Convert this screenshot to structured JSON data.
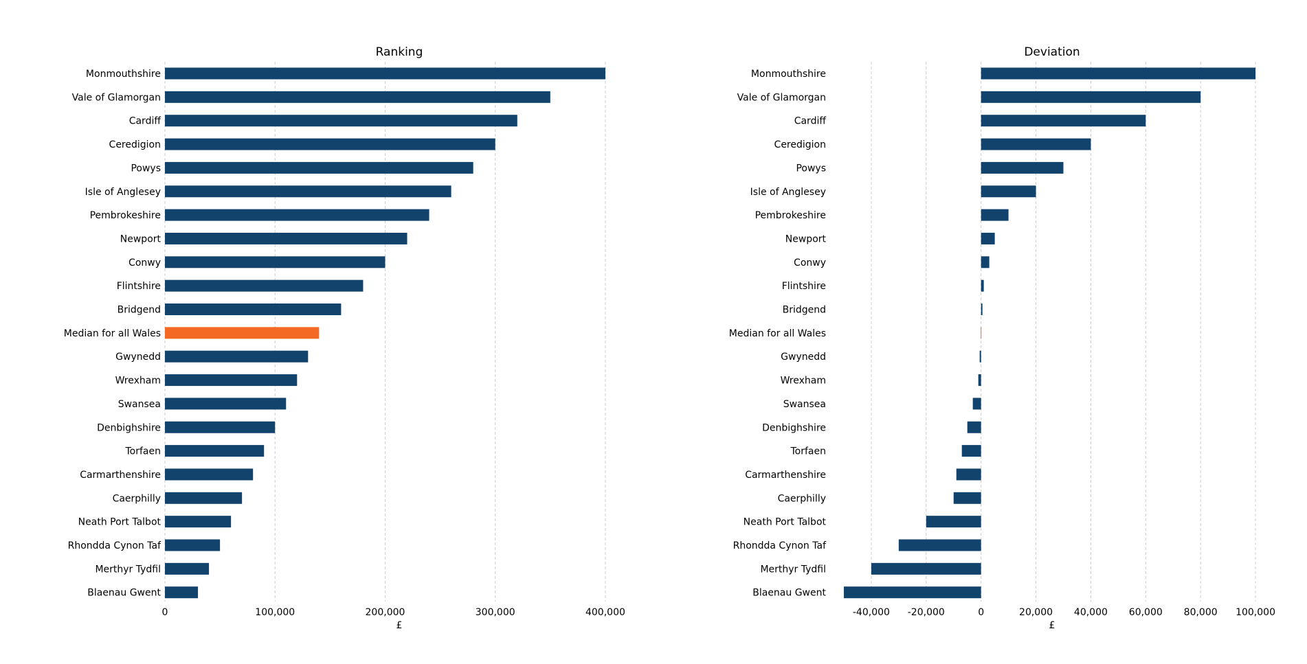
{
  "chart_data": [
    {
      "type": "bar",
      "orientation": "horizontal",
      "title": "Ranking",
      "xlabel": "£",
      "ylabel": "",
      "categories": [
        "Monmouthshire",
        "Vale of Glamorgan",
        "Cardiff",
        "Ceredigion",
        "Powys",
        "Isle of Anglesey",
        "Pembrokeshire",
        "Newport",
        "Conwy",
        "Flintshire",
        "Bridgend",
        "Median for all Wales",
        "Gwynedd",
        "Wrexham",
        "Swansea",
        "Denbighshire",
        "Torfaen",
        "Carmarthenshire",
        "Caerphilly",
        "Neath Port Talbot",
        "Rhondda Cynon Taf",
        "Merthyr Tydfil",
        "Blaenau Gwent"
      ],
      "values": [
        400000,
        350000,
        320000,
        300000,
        280000,
        260000,
        240000,
        220000,
        200000,
        180000,
        160000,
        140000,
        130000,
        120000,
        110000,
        100000,
        90000,
        80000,
        70000,
        60000,
        50000,
        40000,
        30000
      ],
      "xlim": [
        0,
        420000
      ],
      "xticks": [
        0,
        100000,
        200000,
        300000,
        400000
      ],
      "xtick_labels": [
        "0",
        "100,000",
        "200,000",
        "300,000",
        "400,000"
      ],
      "grid": "vertical-dashed",
      "bar_color": "#12436d",
      "highlight_category": "Median for all Wales",
      "highlight_color": "#f46a25"
    },
    {
      "type": "bar",
      "orientation": "horizontal",
      "title": "Deviation",
      "xlabel": "£",
      "ylabel": "",
      "categories": [
        "Monmouthshire",
        "Vale of Glamorgan",
        "Cardiff",
        "Ceredigion",
        "Powys",
        "Isle of Anglesey",
        "Pembrokeshire",
        "Newport",
        "Conwy",
        "Flintshire",
        "Bridgend",
        "Median for all Wales",
        "Gwynedd",
        "Wrexham",
        "Swansea",
        "Denbighshire",
        "Torfaen",
        "Carmarthenshire",
        "Caerphilly",
        "Neath Port Talbot",
        "Rhondda Cynon Taf",
        "Merthyr Tydfil",
        "Blaenau Gwent"
      ],
      "values": [
        100000,
        80000,
        60000,
        40000,
        30000,
        20000,
        10000,
        5000,
        3000,
        1000,
        500,
        0,
        -500,
        -1000,
        -3000,
        -5000,
        -7000,
        -9000,
        -10000,
        -20000,
        -30000,
        -40000,
        -50000
      ],
      "xlim": [
        -55000,
        107000
      ],
      "xticks": [
        -40000,
        -20000,
        0,
        20000,
        40000,
        60000,
        80000,
        100000
      ],
      "xtick_labels": [
        "-40,000",
        "-20,000",
        "0",
        "20,000",
        "40,000",
        "60,000",
        "80,000",
        "100,000"
      ],
      "grid": "vertical-dashed",
      "bar_color": "#12436d",
      "highlight_category": "Median for all Wales",
      "highlight_color": "#f46a25"
    }
  ]
}
